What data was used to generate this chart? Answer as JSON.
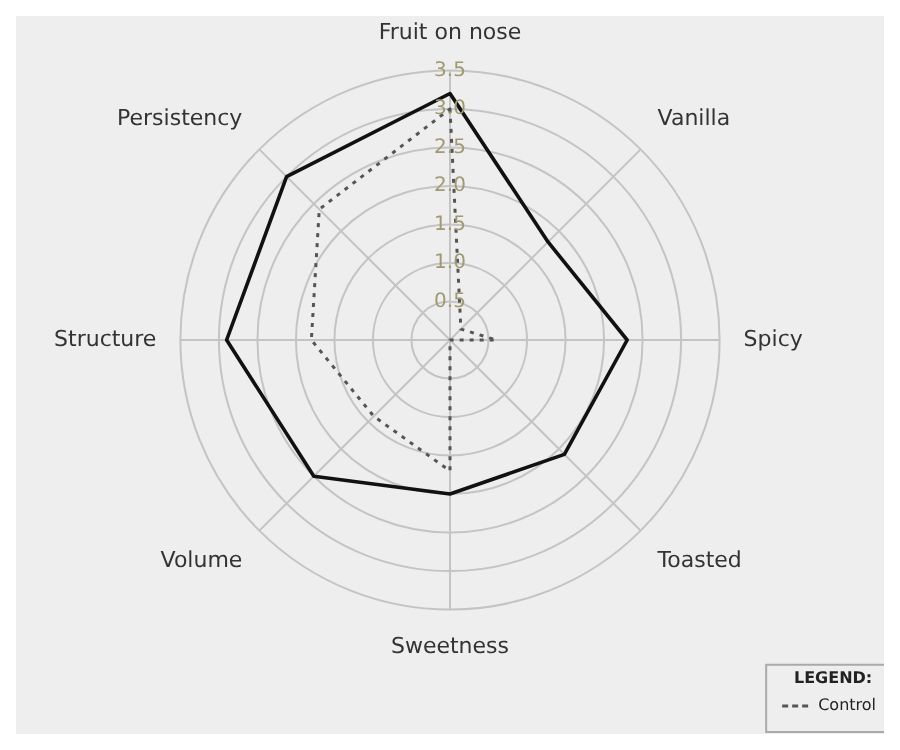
{
  "chart_data": {
    "type": "radar",
    "categories": [
      "Fruit on nose",
      "Vanilla",
      "Spicy",
      "Toasted",
      "Sweetness",
      "Volume",
      "Structure",
      "Persistency"
    ],
    "series": [
      {
        "name": "Control",
        "color": "#555555",
        "line_style": "dotted",
        "values": [
          3.0,
          0.2,
          0.6,
          0,
          1.7,
          1.4,
          1.8,
          2.4
        ]
      },
      {
        "color": "#111111",
        "line_style": "solid",
        "values": [
          3.2,
          1.8,
          2.3,
          2.1,
          2.0,
          2.5,
          2.9,
          3.0
        ]
      }
    ],
    "ylim": [
      0,
      3.5
    ],
    "yticks": [
      0.5,
      {
        "value": 1,
        "label": "1.0"
      },
      1.5,
      {
        "value": 2,
        "label": "2.0"
      },
      2.5,
      {
        "value": 3,
        "label": "3.0"
      },
      3.5
    ],
    "grid": true,
    "marker": "none",
    "legend": "bottom right",
    "legend_title": "LEGEND:"
  }
}
